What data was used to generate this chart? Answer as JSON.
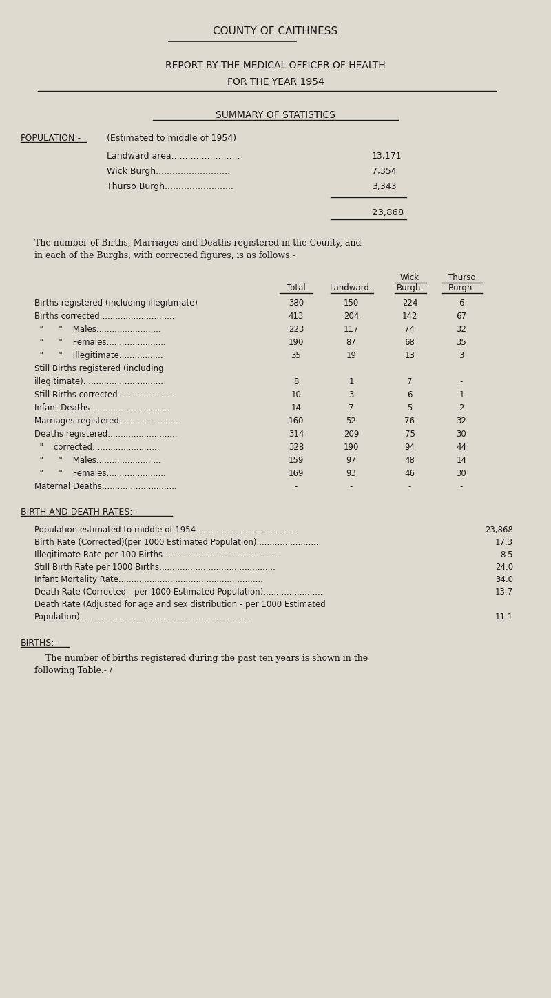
{
  "bg_color": "#dedad0",
  "text_color": "#1a1a1a",
  "title1": "COUNTY OF CAITHNESS",
  "title2": "REPORT BY THE MEDICAL OFFICER OF HEALTH",
  "title3": "FOR THE YEAR 1954",
  "section1": "SUMMARY OF STATISTICS",
  "pop_label": "POPULATION:-",
  "pop_desc": "(Estimated to middle of 1954)",
  "pop_rows": [
    [
      "Landward area.........................",
      "13,171"
    ],
    [
      "Wick Burgh...........................",
      "7,354"
    ],
    [
      "Thurso Burgh.........................",
      "3,343"
    ]
  ],
  "pop_total": "23,868",
  "intro_text1": "The number of Births, Marriages and Deaths registered in the County, and",
  "intro_text2": "in each of the Burghs, with corrected figures, is as follows.-",
  "table_rows": [
    [
      "Births registered (including illegitimate)",
      "380",
      "150",
      "224",
      "6"
    ],
    [
      "Births corrected..............................",
      "413",
      "204",
      "142",
      "67"
    ],
    [
      "  \"      \"    Males.........................",
      "223",
      "117",
      "74",
      "32"
    ],
    [
      "  \"      \"    Females.......................",
      "190",
      "87",
      "68",
      "35"
    ],
    [
      "  \"      \"    Illegitimate.................",
      "35",
      "19",
      "13",
      "3"
    ],
    [
      "Still Births registered (including",
      "",
      "",
      "",
      ""
    ],
    [
      "illegitimate)...............................",
      "8",
      "1",
      "7",
      "-"
    ],
    [
      "Still Births corrected......................",
      "10",
      "3",
      "6",
      "1"
    ],
    [
      "Infant Deaths...............................",
      "14",
      "7",
      "5",
      "2"
    ],
    [
      "Marriages registered........................",
      "160",
      "52",
      "76",
      "32"
    ],
    [
      "Deaths registered...........................",
      "314",
      "209",
      "75",
      "30"
    ],
    [
      "  \"    corrected..........................",
      "328",
      "190",
      "94",
      "44"
    ],
    [
      "  \"      \"    Males.........................",
      "159",
      "97",
      "48",
      "14"
    ],
    [
      "  \"      \"    Females.......................",
      "169",
      "93",
      "46",
      "30"
    ],
    [
      "Maternal Deaths.............................",
      "-",
      "-",
      "-",
      "-"
    ]
  ],
  "section2": "BIRTH AND DEATH RATES:-",
  "rates_rows": [
    [
      "Population estimated to middle of 1954.......................................",
      "23,868"
    ],
    [
      "Birth Rate (Corrected)(per 1000 Estimated Population)........................",
      "17.3"
    ],
    [
      "Illegitimate Rate per 100 Births.............................................",
      "8.5"
    ],
    [
      "Still Birth Rate per 1000 Births.............................................",
      "24.0"
    ],
    [
      "Infant Mortality Rate........................................................",
      "34.0"
    ],
    [
      "Death Rate (Corrected - per 1000 Estimated Population).......................",
      "13.7"
    ],
    [
      "Death Rate (Adjusted for age and sex distribution - per 1000 Estimated",
      ""
    ],
    [
      "Population)...................................................................",
      "11.1"
    ]
  ],
  "section3": "BIRTHS:-",
  "births_text1": "    The number of births registered during the past ten years is shown in the",
  "births_text2": "following Table.- /"
}
